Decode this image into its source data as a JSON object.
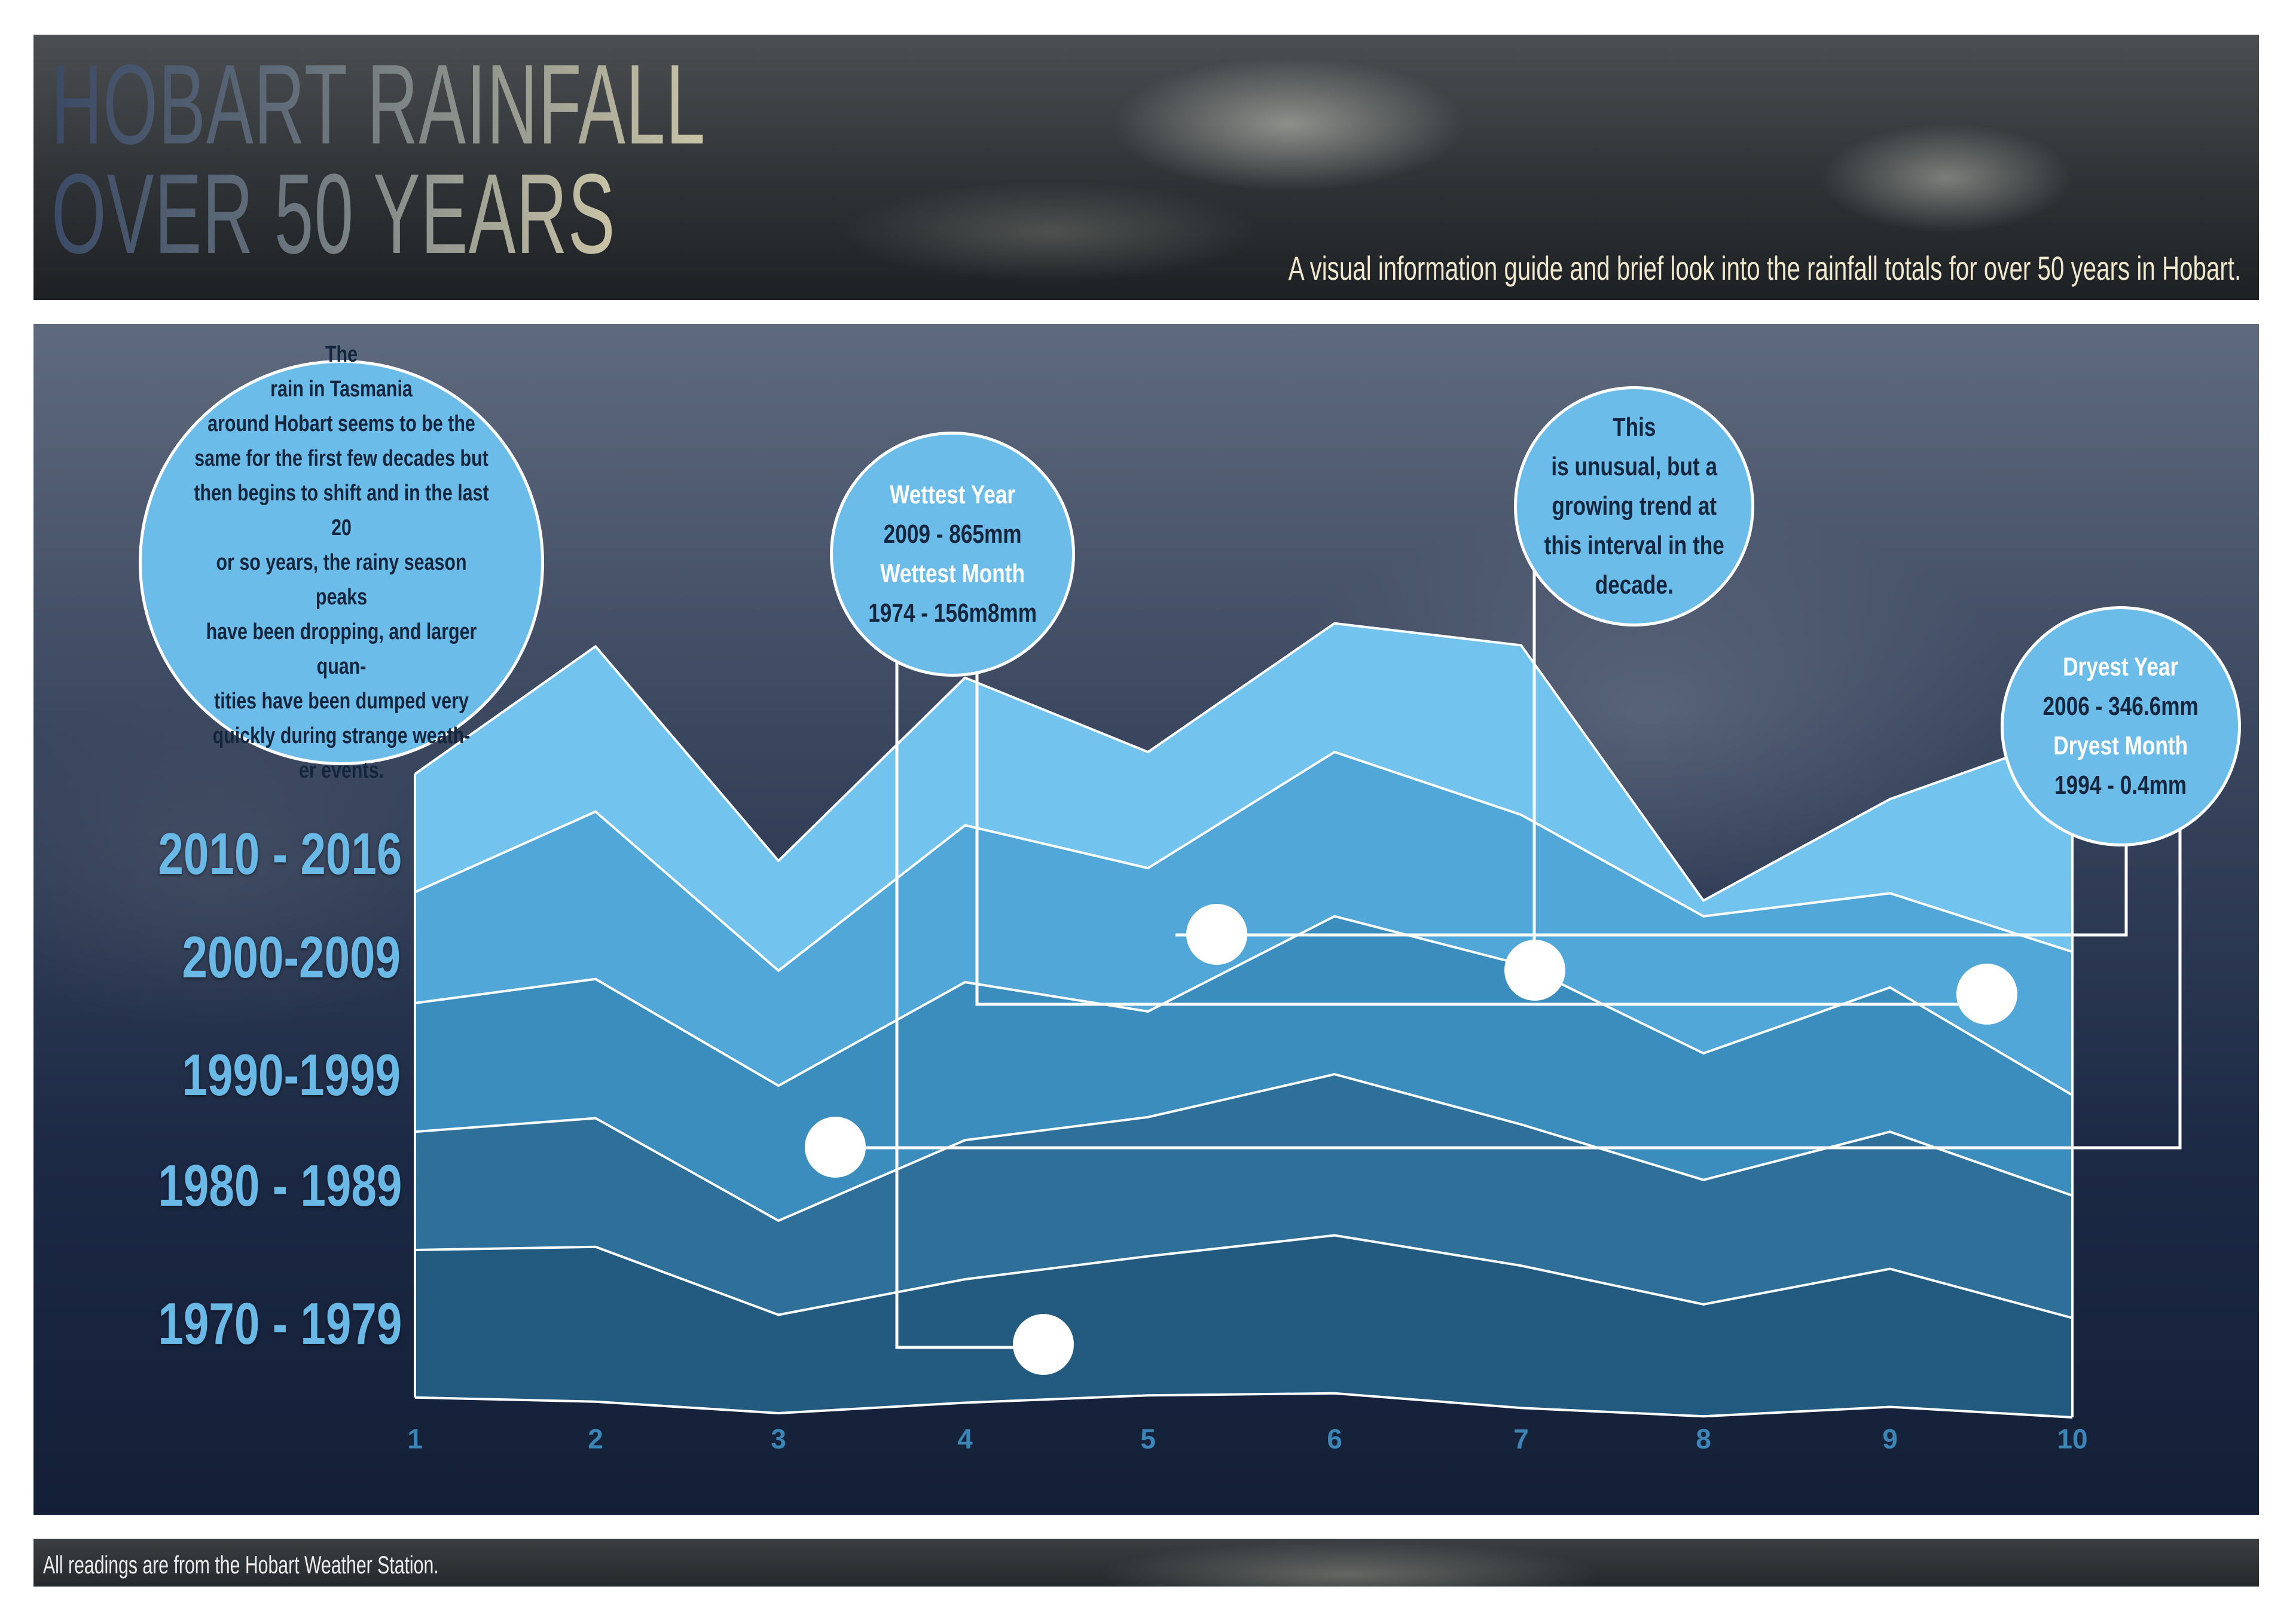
{
  "header": {
    "title_line1": "HOBART RAINFALL",
    "title_line2": "OVER 50 YEARS",
    "subtitle": "A visual information guide and brief look into the rainfall totals for over 50 years in Hobart."
  },
  "annotations": {
    "intro": "The rain in Tasmania around Hobart seems to be the same for the first few decades but then begins to shift and in the last 20 or so years, the rainy season peaks have been dropping, and larger quantities have been dumped very quickly during strange weather events.",
    "intro_lines": [
      "The",
      "rain in Tasmania",
      "around Hobart seems to be the",
      "same for the first few decades but",
      "then begins to shift and in the last 20",
      "or so years, the rainy season peaks",
      "have been dropping, and larger quan-",
      "tities have been dumped very",
      "quickly during strange weath-",
      "er events."
    ],
    "wettest": {
      "year_title": "Wettest Year",
      "year_value": "2009 - 865mm",
      "month_title": "Wettest Month",
      "month_value": "1974 - 156m8mm"
    },
    "note_lines": [
      "This",
      "is unusual, but a",
      "growing trend at",
      "this interval in the",
      "decade."
    ],
    "dryest": {
      "year_title": "Dryest Year",
      "year_value": "2006 - 346.6mm",
      "month_title": "Dryest Month",
      "month_value": "1994 - 0.4mm"
    }
  },
  "footer": {
    "note": "All readings are from the Hobart Weather Station."
  },
  "colors": {
    "band_2010_2016": "#73c3ef",
    "band_2000_2009": "#52a7d9",
    "band_1990_1999": "#3b8dbe",
    "band_1980_1989": "#2f709a",
    "band_1970_1979": "#235a7f",
    "label": "#6ab8e6",
    "axis_label": "#3b86b6",
    "bubble": "#6cbcea"
  },
  "chart_data": {
    "type": "area",
    "stacked": true,
    "x": [
      1,
      2,
      3,
      4,
      5,
      6,
      7,
      8,
      9,
      10
    ],
    "baseline": [
      31,
      27,
      16,
      26,
      33,
      35,
      21,
      13,
      22,
      12
    ],
    "series": [
      {
        "name": "1970 - 1979",
        "values": [
          141,
          148,
          94,
          118,
          133,
          151,
          136,
          107,
          132,
          95
        ]
      },
      {
        "name": "1980 - 1989",
        "values": [
          113,
          123,
          90,
          133,
          133,
          154,
          135,
          119,
          131,
          117
        ]
      },
      {
        "name": "1990-1999",
        "values": [
          123,
          133,
          129,
          151,
          101,
          151,
          153,
          121,
          138,
          96
        ]
      },
      {
        "name": "2000-2009",
        "values": [
          106,
          160,
          110,
          150,
          137,
          157,
          143,
          131,
          90,
          137
        ]
      },
      {
        "name": "2010 - 2016",
        "values": [
          113,
          158,
          105,
          141,
          111,
          123,
          162,
          15,
          90,
          208
        ]
      }
    ],
    "xlabel": "",
    "ylabel": "",
    "grid": false,
    "legend": "left",
    "ylim": [
      0,
      780
    ]
  }
}
